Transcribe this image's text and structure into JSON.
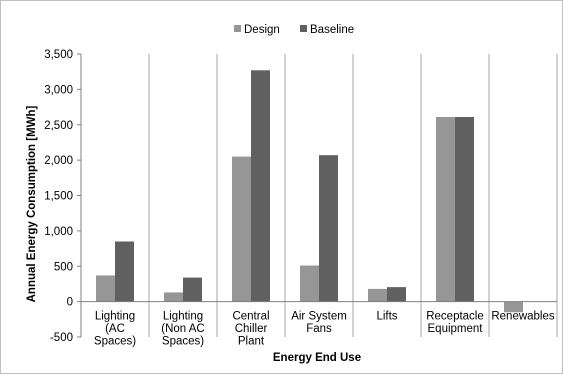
{
  "chart_data": {
    "type": "bar",
    "title": "",
    "xlabel": "Energy End Use",
    "ylabel": "Annual Energy Consumption [MWh]",
    "ylim": [
      -500,
      3500
    ],
    "yticks": [
      -500,
      0,
      500,
      1000,
      1500,
      2000,
      2500,
      3000,
      3500
    ],
    "ytick_labels": [
      "-500",
      "0",
      "500",
      "1,000",
      "1,500",
      "2,000",
      "2,500",
      "3,000",
      "3,500"
    ],
    "grid": false,
    "legend_position": "top-center",
    "categories": [
      [
        "Lighting",
        "(AC",
        "Spaces)"
      ],
      [
        "Lighting",
        "(Non AC",
        "Spaces)"
      ],
      [
        "Central",
        "Chiller",
        "Plant"
      ],
      [
        "Air System",
        "Fans"
      ],
      [
        "Lifts"
      ],
      [
        "Receptacle",
        "Equipment"
      ],
      [
        "Renewables"
      ]
    ],
    "series": [
      {
        "name": "Design",
        "color": "#969696",
        "values": [
          370,
          130,
          2050,
          510,
          180,
          2610,
          -150
        ]
      },
      {
        "name": "Baseline",
        "color": "#606060",
        "values": [
          850,
          340,
          3270,
          2070,
          205,
          2610,
          0
        ]
      }
    ]
  }
}
